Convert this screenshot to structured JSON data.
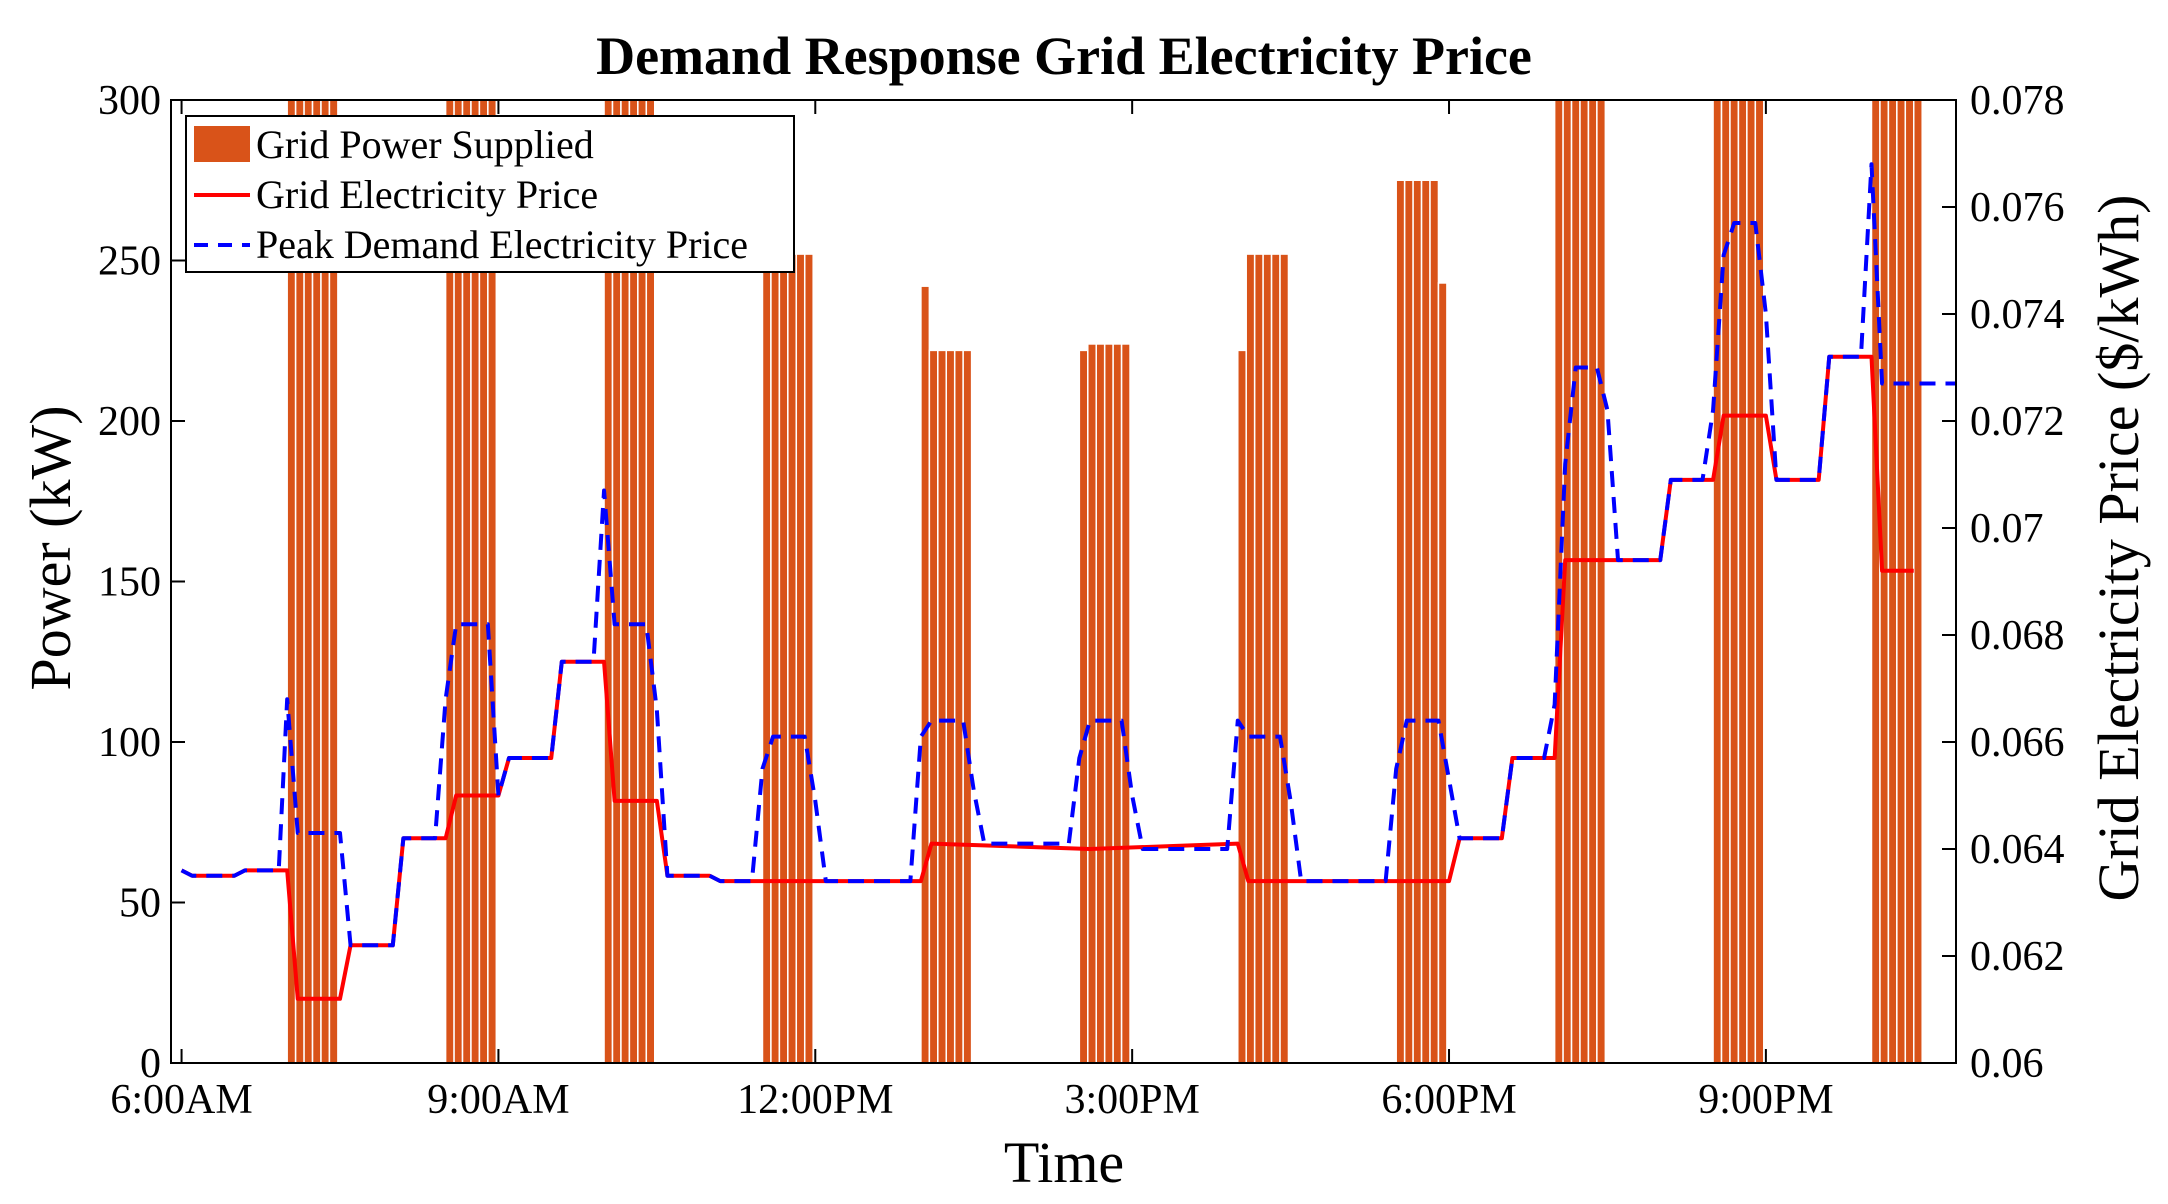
{
  "chart_data": {
    "type": "bar+line",
    "title": "Demand Response Grid Electricity Price",
    "xlabel": "Time",
    "ylabel_left": "Power (kW)",
    "ylabel_right": "Grid Electricity Price ($/kWh)",
    "x_unit": "hours since 6:00AM",
    "xlim": [
      -0.1,
      16.8
    ],
    "ylim_left": [
      0,
      300
    ],
    "ylim_right": [
      0.06,
      0.078
    ],
    "x_ticks": [
      {
        "x": 0,
        "label": "6:00AM"
      },
      {
        "x": 3,
        "label": "9:00AM"
      },
      {
        "x": 6,
        "label": "12:00PM"
      },
      {
        "x": 9,
        "label": "3:00PM"
      },
      {
        "x": 12,
        "label": "6:00PM"
      },
      {
        "x": 15,
        "label": "9:00PM"
      }
    ],
    "y_ticks_left": [
      {
        "v": 0,
        "label": "0"
      },
      {
        "v": 50,
        "label": "50"
      },
      {
        "v": 100,
        "label": "100"
      },
      {
        "v": 150,
        "label": "150"
      },
      {
        "v": 200,
        "label": "200"
      },
      {
        "v": 250,
        "label": "250"
      },
      {
        "v": 300,
        "label": "300"
      }
    ],
    "y_ticks_right": [
      {
        "v": 0.06,
        "label": "0.06"
      },
      {
        "v": 0.062,
        "label": "0.062"
      },
      {
        "v": 0.064,
        "label": "0.064"
      },
      {
        "v": 0.066,
        "label": "0.066"
      },
      {
        "v": 0.068,
        "label": "0.068"
      },
      {
        "v": 0.07,
        "label": "0.07"
      },
      {
        "v": 0.072,
        "label": "0.072"
      },
      {
        "v": 0.074,
        "label": "0.074"
      },
      {
        "v": 0.076,
        "label": "0.076"
      },
      {
        "v": 0.078,
        "label": "0.078"
      }
    ],
    "colors": {
      "bars": "#d95319",
      "bar_edge": "#ffffff",
      "price": "#ff0000",
      "peak": "#0000ff"
    },
    "bar_width": 0.08,
    "bars": {
      "name": "Grid Power Supplied",
      "blocks": [
        {
          "start": 1.0,
          "count": 6,
          "values": [
            300,
            300,
            300,
            300,
            300,
            300
          ]
        },
        {
          "start": 2.5,
          "count": 6,
          "values": [
            300,
            300,
            300,
            300,
            300,
            300
          ]
        },
        {
          "start": 4.0,
          "count": 6,
          "values": [
            300,
            300,
            300,
            300,
            300,
            300
          ]
        },
        {
          "start": 5.5,
          "count": 6,
          "values": [
            252,
            252,
            252,
            252,
            252,
            252
          ]
        },
        {
          "start": 7.0,
          "count": 6,
          "values": [
            242,
            222,
            222,
            222,
            222,
            222
          ]
        },
        {
          "start": 8.5,
          "count": 6,
          "values": [
            222,
            224,
            224,
            224,
            224,
            224
          ]
        },
        {
          "start": 10.0,
          "count": 6,
          "values": [
            222,
            252,
            252,
            252,
            252,
            252
          ]
        },
        {
          "start": 11.5,
          "count": 6,
          "values": [
            275,
            275,
            275,
            275,
            275,
            243
          ]
        },
        {
          "start": 13.0,
          "count": 6,
          "values": [
            300,
            300,
            300,
            300,
            300,
            300
          ]
        },
        {
          "start": 14.5,
          "count": 6,
          "values": [
            300,
            300,
            300,
            300,
            300,
            300
          ]
        },
        {
          "start": 16.0,
          "count": 6,
          "values": [
            300,
            300,
            300,
            300,
            300,
            300
          ]
        }
      ]
    },
    "series": [
      {
        "name": "Grid Electricity Price",
        "axis": "right",
        "style": "solid",
        "points": [
          [
            0,
            0.0636
          ],
          [
            0.1,
            0.0635
          ],
          [
            0.5,
            0.0635
          ],
          [
            0.6,
            0.0636
          ],
          [
            1.0,
            0.0636
          ],
          [
            1.1,
            0.0612
          ],
          [
            1.5,
            0.0612
          ],
          [
            1.6,
            0.0622
          ],
          [
            2.0,
            0.0622
          ],
          [
            2.1,
            0.0642
          ],
          [
            2.5,
            0.0642
          ],
          [
            2.6,
            0.065
          ],
          [
            3.0,
            0.065
          ],
          [
            3.1,
            0.0657
          ],
          [
            3.5,
            0.0657
          ],
          [
            3.6,
            0.0675
          ],
          [
            4.0,
            0.0675
          ],
          [
            4.1,
            0.0649
          ],
          [
            4.5,
            0.0649
          ],
          [
            4.6,
            0.0635
          ],
          [
            5.0,
            0.0635
          ],
          [
            5.1,
            0.0634
          ],
          [
            7.0,
            0.0634
          ],
          [
            7.1,
            0.0641
          ],
          [
            8.6,
            0.064
          ],
          [
            10.0,
            0.0641
          ],
          [
            10.1,
            0.0634
          ],
          [
            12.0,
            0.0634
          ],
          [
            12.1,
            0.0642
          ],
          [
            12.5,
            0.0642
          ],
          [
            12.6,
            0.0657
          ],
          [
            13.0,
            0.0657
          ],
          [
            13.1,
            0.0694
          ],
          [
            13.5,
            0.0694
          ],
          [
            13.6,
            0.0694
          ],
          [
            14.0,
            0.0694
          ],
          [
            14.1,
            0.0709
          ],
          [
            14.5,
            0.0709
          ],
          [
            14.6,
            0.0721
          ],
          [
            15.0,
            0.0721
          ],
          [
            15.1,
            0.0709
          ],
          [
            15.5,
            0.0709
          ],
          [
            15.6,
            0.0732
          ],
          [
            16.0,
            0.0732
          ],
          [
            16.1,
            0.0692
          ],
          [
            16.4,
            0.0692
          ]
        ]
      },
      {
        "name": "Peak Demand Electricity Price",
        "axis": "right",
        "style": "dashed",
        "points": [
          [
            0,
            0.0636
          ],
          [
            0.1,
            0.0635
          ],
          [
            0.5,
            0.0635
          ],
          [
            0.6,
            0.0636
          ],
          [
            0.92,
            0.0636
          ],
          [
            1.0,
            0.0668
          ],
          [
            1.1,
            0.0643
          ],
          [
            1.5,
            0.0643
          ],
          [
            1.6,
            0.0622
          ],
          [
            2.0,
            0.0622
          ],
          [
            2.1,
            0.0642
          ],
          [
            2.4,
            0.0642
          ],
          [
            2.5,
            0.0668
          ],
          [
            2.6,
            0.0682
          ],
          [
            2.9,
            0.0682
          ],
          [
            3.0,
            0.065
          ],
          [
            3.1,
            0.0657
          ],
          [
            3.5,
            0.0657
          ],
          [
            3.6,
            0.0675
          ],
          [
            3.9,
            0.0675
          ],
          [
            4.0,
            0.0707
          ],
          [
            4.1,
            0.0682
          ],
          [
            4.4,
            0.0682
          ],
          [
            4.5,
            0.0666
          ],
          [
            4.6,
            0.0635
          ],
          [
            5.0,
            0.0635
          ],
          [
            5.1,
            0.0634
          ],
          [
            5.4,
            0.0634
          ],
          [
            5.5,
            0.0655
          ],
          [
            5.6,
            0.0661
          ],
          [
            5.9,
            0.0661
          ],
          [
            6.0,
            0.0649
          ],
          [
            6.1,
            0.0634
          ],
          [
            6.9,
            0.0634
          ],
          [
            7.0,
            0.0661
          ],
          [
            7.1,
            0.0664
          ],
          [
            7.4,
            0.0664
          ],
          [
            7.5,
            0.0651
          ],
          [
            7.6,
            0.0641
          ],
          [
            8.4,
            0.0641
          ],
          [
            8.5,
            0.0657
          ],
          [
            8.6,
            0.0664
          ],
          [
            8.9,
            0.0664
          ],
          [
            9.0,
            0.065
          ],
          [
            9.1,
            0.064
          ],
          [
            9.9,
            0.064
          ],
          [
            10.0,
            0.0664
          ],
          [
            10.1,
            0.0661
          ],
          [
            10.4,
            0.0661
          ],
          [
            10.5,
            0.0649
          ],
          [
            10.6,
            0.0634
          ],
          [
            11.4,
            0.0634
          ],
          [
            11.5,
            0.0655
          ],
          [
            11.6,
            0.0664
          ],
          [
            11.9,
            0.0664
          ],
          [
            12.0,
            0.0653
          ],
          [
            12.1,
            0.0642
          ],
          [
            12.5,
            0.0642
          ],
          [
            12.6,
            0.0657
          ],
          [
            12.9,
            0.0657
          ],
          [
            13.0,
            0.0667
          ],
          [
            13.1,
            0.0712
          ],
          [
            13.2,
            0.073
          ],
          [
            13.4,
            0.073
          ],
          [
            13.5,
            0.0722
          ],
          [
            13.6,
            0.0694
          ],
          [
            14.0,
            0.0694
          ],
          [
            14.1,
            0.0709
          ],
          [
            14.4,
            0.0709
          ],
          [
            14.5,
            0.0722
          ],
          [
            14.6,
            0.0751
          ],
          [
            14.7,
            0.0757
          ],
          [
            14.9,
            0.0757
          ],
          [
            15.0,
            0.074
          ],
          [
            15.1,
            0.0709
          ],
          [
            15.5,
            0.0709
          ],
          [
            15.6,
            0.0732
          ],
          [
            15.9,
            0.0732
          ],
          [
            16.0,
            0.0768
          ],
          [
            16.1,
            0.0727
          ],
          [
            16.8,
            0.0727
          ]
        ]
      }
    ]
  }
}
